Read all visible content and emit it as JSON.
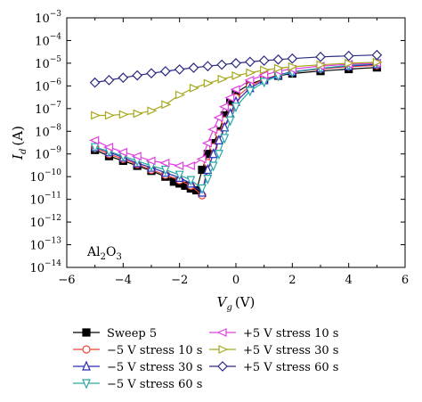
{
  "chart_data": {
    "type": "scatter",
    "xlabel": "V",
    "xlabel_sub": "g",
    "xlabel_unit": "(V)",
    "ylabel": "I",
    "ylabel_sub": "d",
    "ylabel_unit": "(A)",
    "xlim": [
      -6,
      6
    ],
    "ylim_log10": [
      -14,
      -3
    ],
    "y_scale": "log",
    "grid": false,
    "legend_placement": "bottom, outside plot",
    "x_ticks": [
      "−6",
      "−4",
      "−2",
      "0",
      "2",
      "4",
      "6"
    ],
    "x_tick_values": [
      -6,
      -4,
      -2,
      0,
      2,
      4,
      6
    ],
    "y_tick_exponents": [
      -14,
      -13,
      -12,
      -11,
      -10,
      -9,
      -8,
      -7,
      -6,
      -5,
      -4,
      -3
    ],
    "y_tick_base": "10",
    "annotation": {
      "text": "Al",
      "sub1": "2",
      "mid": "O",
      "sub2": "3"
    },
    "series": [
      {
        "name": "Sweep 5",
        "color": "#000000",
        "marker": "square-filled",
        "x": [
          -5,
          -4.5,
          -4,
          -3.5,
          -3,
          -2.5,
          -2.2,
          -2,
          -1.8,
          -1.6,
          -1.4,
          -1.2,
          -1,
          -0.8,
          -0.6,
          -0.4,
          -0.2,
          0,
          0.5,
          1,
          1.5,
          2,
          3,
          4,
          5
        ],
        "y": [
          1.5e-09,
          8e-10,
          5e-10,
          3e-10,
          1.8e-10,
          1e-10,
          6e-11,
          5e-11,
          4e-11,
          3e-11,
          2.5e-11,
          2e-10,
          1e-09,
          3e-09,
          1e-08,
          5e-08,
          2e-07,
          5e-07,
          1.2e-06,
          2e-06,
          2.8e-06,
          3.5e-06,
          4.5e-06,
          5.5e-06,
          6.5e-06
        ]
      },
      {
        "name": "−5 V stress 10 s",
        "color": "#e8463a",
        "marker": "circle-open",
        "x": [
          -5,
          -4.5,
          -4,
          -3.5,
          -3,
          -2.5,
          -2,
          -1.6,
          -1.2,
          -1,
          -0.8,
          -0.6,
          -0.4,
          -0.2,
          0,
          0.5,
          1,
          1.5,
          2,
          3,
          4,
          5
        ],
        "y": [
          1.8e-09,
          1e-09,
          6e-10,
          3.5e-10,
          2e-10,
          1.2e-10,
          7e-11,
          4e-11,
          1.5e-11,
          4e-10,
          2e-09,
          8e-09,
          3e-08,
          1e-07,
          3e-07,
          1e-06,
          2e-06,
          3e-06,
          4e-06,
          5.5e-06,
          7e-06,
          8e-06
        ]
      },
      {
        "name": "−5 V stress 30 s",
        "color": "#2a2ab8",
        "marker": "triangle-up-open",
        "x": [
          -5,
          -4.5,
          -4,
          -3.5,
          -3,
          -2.5,
          -2,
          -1.6,
          -1.2,
          -1,
          -0.8,
          -0.6,
          -0.4,
          -0.2,
          0,
          0.5,
          1,
          1.5,
          2,
          3,
          4,
          5
        ],
        "y": [
          2e-09,
          1.2e-09,
          7e-10,
          4e-10,
          2.5e-10,
          1.5e-10,
          9e-11,
          5e-11,
          2e-11,
          2e-10,
          1e-09,
          4e-09,
          1.5e-08,
          6e-08,
          2e-07,
          8e-07,
          1.8e-06,
          3e-06,
          4.2e-06,
          6e-06,
          7.5e-06,
          9e-06
        ]
      },
      {
        "name": "−5 V stress 60 s",
        "color": "#2aa8a8",
        "marker": "triangle-down-open",
        "x": [
          -5,
          -4.5,
          -4,
          -3.5,
          -3,
          -2.5,
          -2,
          -1.6,
          -1.2,
          -1,
          -0.8,
          -0.6,
          -0.4,
          -0.2,
          0,
          0.5,
          1,
          1.5,
          2,
          3,
          4,
          5
        ],
        "y": [
          2e-09,
          1.3e-09,
          8e-10,
          5e-10,
          3e-10,
          2e-10,
          1.2e-10,
          7e-11,
          3e-11,
          8e-11,
          3e-10,
          1e-09,
          5e-09,
          3e-08,
          1.2e-07,
          6e-07,
          1.5e-06,
          2.8e-06,
          4e-06,
          6e-06,
          8e-06,
          1e-05
        ]
      },
      {
        "name": "+5 V stress 10 s",
        "color": "#e040e0",
        "marker": "triangle-left-open",
        "x": [
          -5,
          -4.5,
          -4,
          -3.5,
          -3,
          -2.5,
          -2,
          -1.6,
          -1.2,
          -1,
          -0.8,
          -0.6,
          -0.4,
          -0.2,
          0,
          0.5,
          1,
          1.5,
          2,
          3,
          4,
          5
        ],
        "y": [
          4e-09,
          2e-09,
          1.2e-09,
          8e-10,
          5e-10,
          4e-10,
          3e-10,
          3e-10,
          6e-10,
          3e-09,
          1.2e-08,
          4e-08,
          1.2e-07,
          3e-07,
          7e-07,
          1.8e-06,
          3e-06,
          4.5e-06,
          5.5e-06,
          7.5e-06,
          9e-06,
          1e-05
        ]
      },
      {
        "name": "+5 V stress 30 s",
        "color": "#a8a820",
        "marker": "triangle-right-open",
        "x": [
          -5,
          -4.5,
          -4,
          -3.5,
          -3,
          -2.5,
          -2,
          -1.5,
          -1,
          -0.5,
          0,
          0.5,
          1,
          1.5,
          2,
          3,
          4,
          5
        ],
        "y": [
          5e-08,
          5e-08,
          5.5e-08,
          6e-08,
          8e-08,
          1.5e-07,
          4e-07,
          8e-07,
          1.3e-06,
          2e-06,
          2.8e-06,
          3.8e-06,
          5e-06,
          6e-06,
          7e-06,
          8.5e-06,
          1e-05,
          1.1e-05
        ]
      },
      {
        "name": "+5 V stress 60 s",
        "color": "#2a2a80",
        "marker": "diamond-open",
        "x": [
          -5,
          -4.5,
          -4,
          -3.5,
          -3,
          -2.5,
          -2,
          -1.5,
          -1,
          -0.5,
          0,
          0.5,
          1,
          1.5,
          2,
          3,
          4,
          5
        ],
        "y": [
          1.4e-06,
          1.8e-06,
          2.3e-06,
          2.9e-06,
          3.6e-06,
          4.4e-06,
          5.3e-06,
          6.3e-06,
          7.4e-06,
          8.6e-06,
          1e-05,
          1.15e-05,
          1.3e-05,
          1.45e-05,
          1.6e-05,
          1.9e-05,
          2.1e-05,
          2.3e-05
        ]
      }
    ]
  }
}
